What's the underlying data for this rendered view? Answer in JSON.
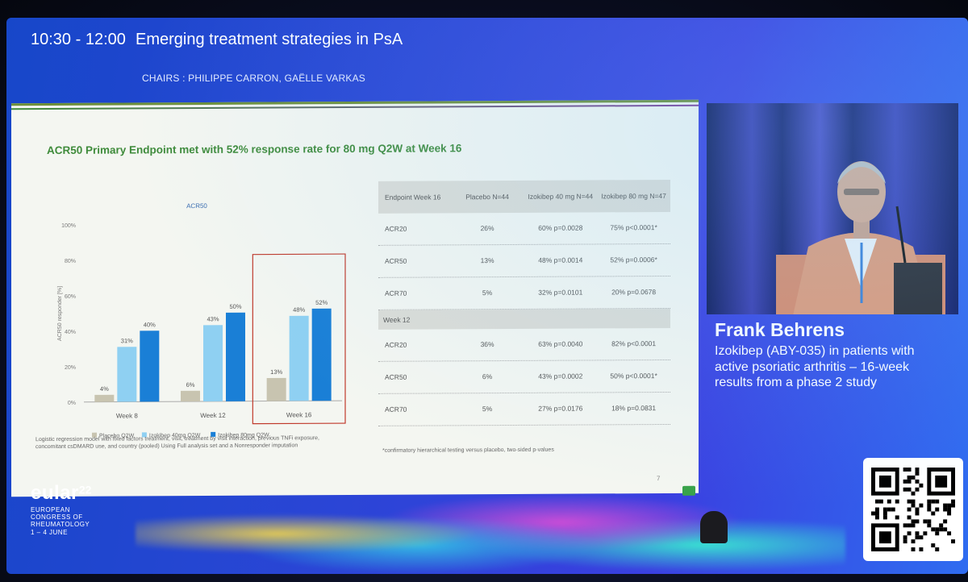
{
  "session": {
    "time": "10:30 - 12:00",
    "title": "Emerging treatment strategies in PsA",
    "chairs": "CHAIRS : PHILIPPE CARRON, GAËLLE VARKAS"
  },
  "slide": {
    "title": "ACR50 Primary Endpoint met with 52% response rate for 80 mg Q2W at Week 16",
    "footnote_left": "Logistic regression model with fixed factors treatment, visit, treatment by visit interaction, previous TNFi exposure, concomitant csDMARD use, and country (pooled) Using Full analysis set and a Nonresponder imputation",
    "footnote_right": "*confirmatory hierarchical testing versus placebo, two-sided p-values",
    "page_number": "7"
  },
  "chart_data": {
    "type": "bar",
    "title": "ACR50",
    "ylabel": "ACR50 responder [%]",
    "ylim": [
      0,
      100
    ],
    "yticks": [
      "0%",
      "20%",
      "40%",
      "60%",
      "80%",
      "100%"
    ],
    "categories": [
      "Week 8",
      "Week 12",
      "Week 16"
    ],
    "series": [
      {
        "name": "Placebo Q2W",
        "color": "#c8c4b0",
        "values": [
          4,
          6,
          13
        ],
        "labels": [
          "4%",
          "6%",
          "13%"
        ]
      },
      {
        "name": "Izokibep 40mg Q2W",
        "color": "#8fd0f2",
        "values": [
          31,
          43,
          48
        ],
        "labels": [
          "31%",
          "43%",
          "48%"
        ]
      },
      {
        "name": "Izokibep 80mg Q2W",
        "color": "#1a7fd6",
        "values": [
          40,
          50,
          52
        ],
        "labels": [
          "40%",
          "50%",
          "52%"
        ]
      }
    ],
    "highlight_category": "Week 16",
    "legend": "bottom"
  },
  "table": {
    "headers": [
      "Endpoint Week 16",
      "Placebo N=44",
      "Izokibep 40 mg N=44",
      "Izokibep 80 mg N=47"
    ],
    "week16_rows": [
      [
        "ACR20",
        "26%",
        "60% p=0.0028",
        "75% p<0.0001*"
      ],
      [
        "ACR50",
        "13%",
        "48% p=0.0014",
        "52% p=0.0006*"
      ],
      [
        "ACR70",
        "5%",
        "32% p=0.0101",
        "20% p=0.0678"
      ]
    ],
    "section_week12": "Week 12",
    "week12_rows": [
      [
        "ACR20",
        "36%",
        "63% p=0.0040",
        "82% p<0.0001"
      ],
      [
        "ACR50",
        "6%",
        "43% p=0.0002",
        "50% p<0.0001*"
      ],
      [
        "ACR70",
        "5%",
        "27% p=0.0176",
        "18% p=0.0831"
      ]
    ]
  },
  "speaker": {
    "name": "Frank Behrens",
    "talk": "Izokibep (ABY-035) in patients with active psoriatic arthritis – 16-week results from a phase 2 study"
  },
  "congress": {
    "name": "eular",
    "year": "22",
    "line1": "EUROPEAN",
    "line2": "CONGRESS OF",
    "line3": "RHEUMATOLOGY",
    "dates": "1 – 4 JUNE"
  }
}
